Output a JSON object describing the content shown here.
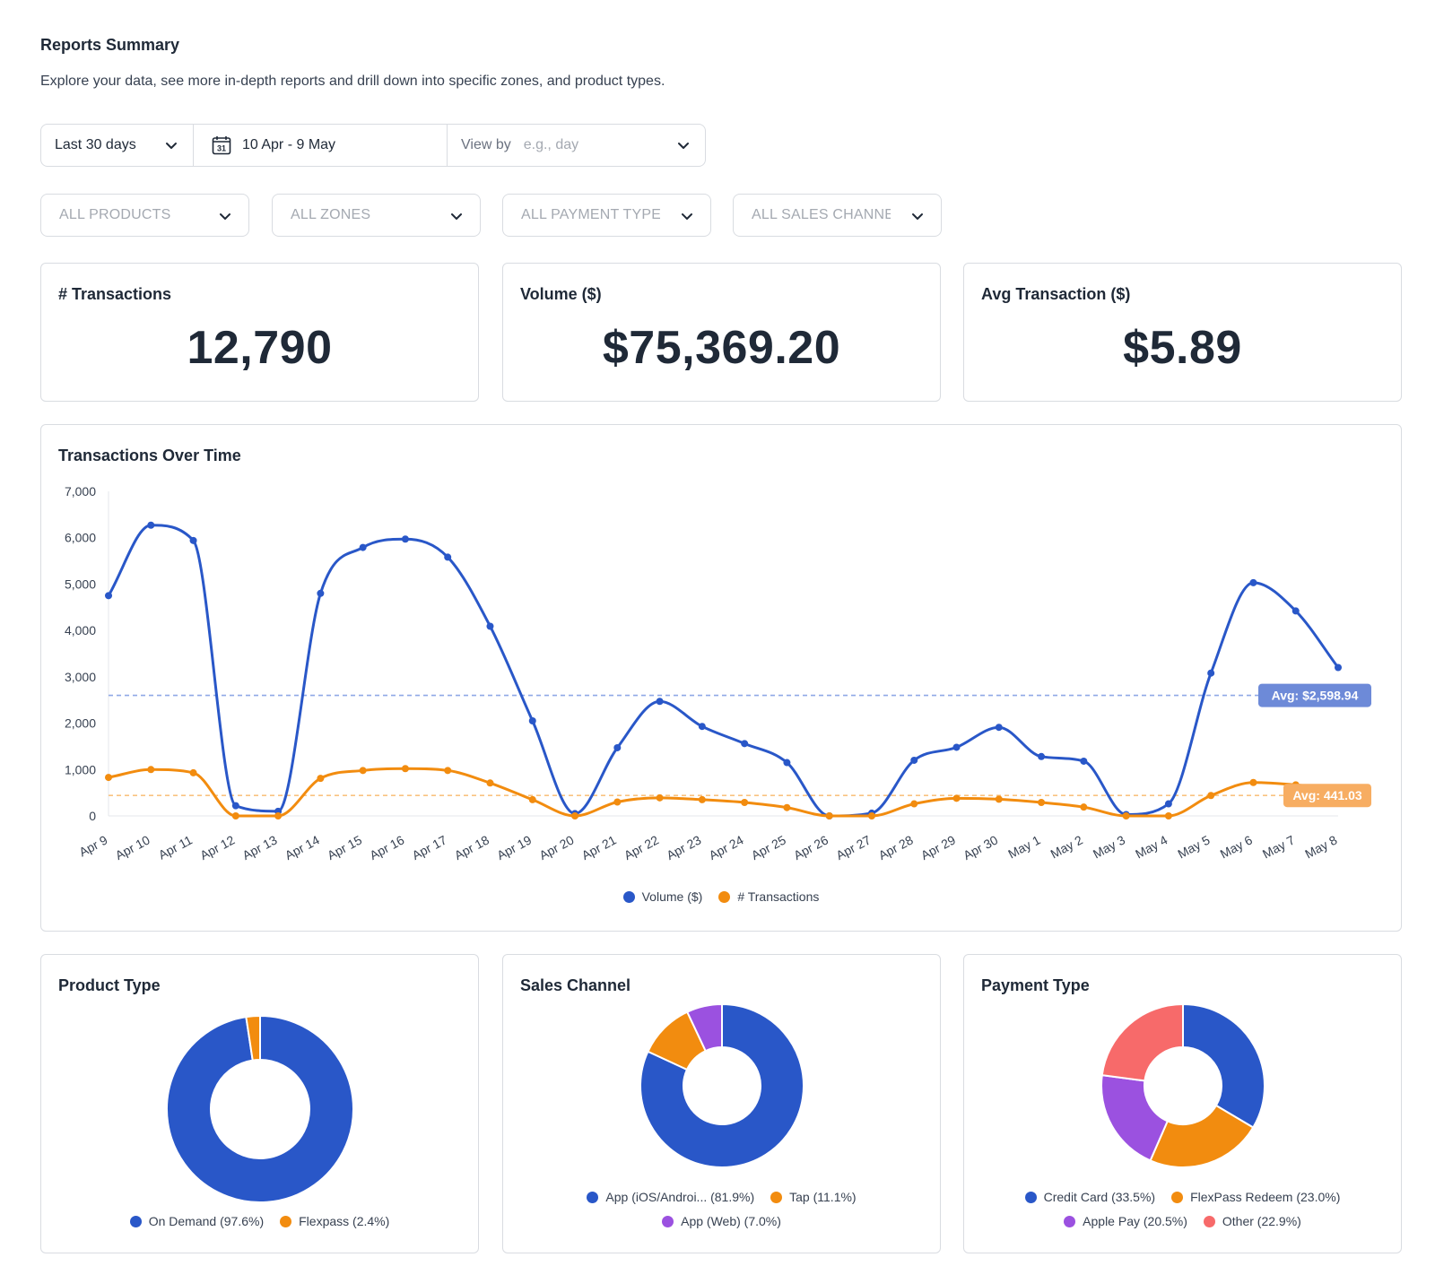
{
  "header": {
    "title": "Reports Summary",
    "subtitle": "Explore your data, see more in-depth reports and drill down into specific zones, and product types."
  },
  "date_bar": {
    "range_label": "Last 30 days",
    "calendar_day": "31",
    "date_range": "10 Apr - 9 May",
    "view_by_label": "View by",
    "view_by_placeholder": "e.g., day"
  },
  "filters": [
    {
      "label": "ALL PRODUCTS"
    },
    {
      "label": "ALL ZONES"
    },
    {
      "label": "ALL PAYMENT TYPES"
    },
    {
      "label": "ALL SALES CHANNELS"
    }
  ],
  "kpis": [
    {
      "title": "# Transactions",
      "value": "12,790"
    },
    {
      "title": "Volume ($)",
      "value": "$75,369.20"
    },
    {
      "title": "Avg Transaction ($)",
      "value": "$5.89"
    }
  ],
  "colors": {
    "blue": "#2957c8",
    "orange": "#f28c0f",
    "purple": "#9b51e0",
    "red": "#f76a6a"
  },
  "chart_data": [
    {
      "type": "line",
      "title": "Transactions Over Time",
      "x": [
        "Apr 9",
        "Apr 10",
        "Apr 11",
        "Apr 12",
        "Apr 13",
        "Apr 14",
        "Apr 15",
        "Apr 16",
        "Apr 17",
        "Apr 18",
        "Apr 19",
        "Apr 20",
        "Apr 21",
        "Apr 22",
        "Apr 23",
        "Apr 24",
        "Apr 25",
        "Apr 26",
        "Apr 27",
        "Apr 28",
        "Apr 29",
        "Apr 30",
        "May 1",
        "May 2",
        "May 3",
        "May 4",
        "May 5",
        "May 6",
        "May 7",
        "May 8"
      ],
      "ylim": [
        0,
        7000
      ],
      "yticks": [
        "0",
        "1,000",
        "2,000",
        "3,000",
        "4,000",
        "5,000",
        "6,000",
        "7,000"
      ],
      "series": [
        {
          "name": "Volume ($)",
          "color": "#2957c8",
          "values": [
            4750,
            6270,
            5940,
            220,
            100,
            4800,
            5790,
            5970,
            5580,
            4090,
            2050,
            50,
            1470,
            2470,
            1930,
            1560,
            1150,
            0,
            60,
            1200,
            1480,
            1910,
            1280,
            1180,
            30,
            260,
            3080,
            5030,
            4420,
            3200
          ],
          "avg_label": "Avg: $2,598.94",
          "avg": 2598.94
        },
        {
          "name": "# Transactions",
          "color": "#f28c0f",
          "values": [
            830,
            1000,
            930,
            0,
            0,
            810,
            980,
            1020,
            980,
            710,
            350,
            0,
            300,
            390,
            350,
            290,
            180,
            0,
            0,
            260,
            380,
            360,
            290,
            190,
            0,
            0,
            440,
            720,
            670,
            570
          ],
          "avg_label": "Avg: 441.03",
          "avg": 441.03
        }
      ],
      "legend": [
        "Volume ($)",
        "# Transactions"
      ]
    },
    {
      "type": "pie",
      "title": "Product Type",
      "slices": [
        {
          "label": "On Demand (97.6%)",
          "value": 97.6,
          "color": "#2957c8"
        },
        {
          "label": "Flexpass (2.4%)",
          "value": 2.4,
          "color": "#f28c0f"
        }
      ]
    },
    {
      "type": "pie",
      "title": "Sales Channel",
      "slices": [
        {
          "label": "App (iOS/Androi... (81.9%)",
          "value": 81.9,
          "color": "#2957c8"
        },
        {
          "label": "Tap (11.1%)",
          "value": 11.1,
          "color": "#f28c0f"
        },
        {
          "label": "App (Web) (7.0%)",
          "value": 7.0,
          "color": "#9b51e0"
        }
      ]
    },
    {
      "type": "pie",
      "title": "Payment Type",
      "slices": [
        {
          "label": "Credit Card (33.5%)",
          "value": 33.5,
          "color": "#2957c8"
        },
        {
          "label": "FlexPass Redeem (23.0%)",
          "value": 23.0,
          "color": "#f28c0f"
        },
        {
          "label": "Apple Pay (20.5%)",
          "value": 20.5,
          "color": "#9b51e0"
        },
        {
          "label": "Other (22.9%)",
          "value": 22.9,
          "color": "#f76a6a"
        }
      ]
    }
  ]
}
